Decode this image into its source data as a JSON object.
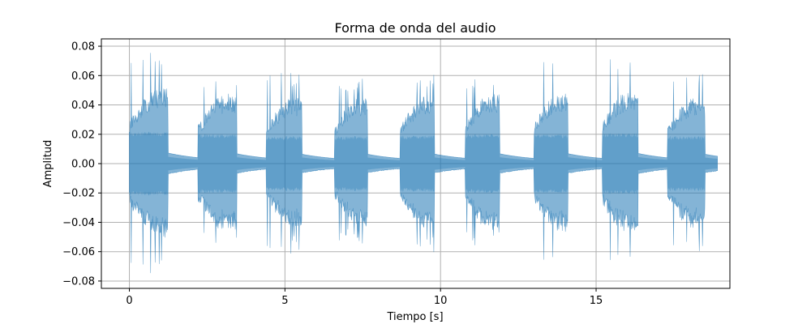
{
  "chart_data": {
    "type": "area",
    "title": "Forma de onda del audio",
    "xlabel": "Tiempo [s]",
    "ylabel": "Amplitud",
    "xlim": [
      -0.9,
      19.3
    ],
    "ylim": [
      -0.085,
      0.085
    ],
    "x_ticks": [
      0,
      5,
      10,
      15
    ],
    "x_tick_labels": [
      "0",
      "5",
      "10",
      "15"
    ],
    "y_ticks": [
      0.08,
      0.06,
      0.04,
      0.02,
      0.0,
      -0.02,
      -0.04,
      -0.06,
      -0.08
    ],
    "y_tick_labels": [
      "0.08",
      "0.06",
      "0.04",
      "0.02",
      "0.00",
      "−0.02",
      "−0.04",
      "−0.06",
      "−0.08"
    ],
    "grid": true,
    "line_color": "#1f77b4",
    "duration": 18.9,
    "bursts": [
      {
        "start": 0.0,
        "end": 1.25,
        "peak": 0.077,
        "body": 0.052
      },
      {
        "start": 2.2,
        "end": 3.45,
        "peak": 0.058,
        "body": 0.048
      },
      {
        "start": 4.4,
        "end": 5.55,
        "peak": 0.062,
        "body": 0.045
      },
      {
        "start": 6.6,
        "end": 7.65,
        "peak": 0.058,
        "body": 0.045
      },
      {
        "start": 8.7,
        "end": 9.8,
        "peak": 0.061,
        "body": 0.046
      },
      {
        "start": 10.8,
        "end": 11.9,
        "peak": 0.06,
        "body": 0.048
      },
      {
        "start": 13.0,
        "end": 14.1,
        "peak": 0.078,
        "body": 0.048
      },
      {
        "start": 15.2,
        "end": 16.35,
        "peak": 0.072,
        "body": 0.05
      },
      {
        "start": 17.3,
        "end": 18.5,
        "peak": 0.062,
        "body": 0.045
      }
    ]
  }
}
